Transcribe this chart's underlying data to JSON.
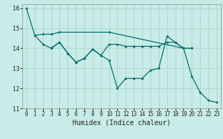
{
  "xlabel": "Humidex (Indice chaleur)",
  "background_color": "#c8ece8",
  "grid_color": "#b0d8d0",
  "line_color": "#006b6b",
  "ylim": [
    11,
    16.2
  ],
  "xlim": [
    -0.5,
    23.5
  ],
  "yticks": [
    11,
    12,
    13,
    14,
    15,
    16
  ],
  "xticks": [
    0,
    1,
    2,
    3,
    4,
    5,
    6,
    7,
    8,
    9,
    10,
    11,
    12,
    13,
    14,
    15,
    16,
    17,
    18,
    19,
    20,
    21,
    22,
    23
  ],
  "series": [
    {
      "x": [
        0,
        1,
        2,
        3,
        4,
        10,
        19,
        20
      ],
      "y": [
        16.0,
        14.65,
        14.7,
        14.7,
        14.8,
        14.8,
        14.0,
        14.0
      ]
    },
    {
      "x": [
        1,
        2,
        3,
        4,
        5,
        6,
        7,
        8,
        9,
        10,
        11,
        12,
        13,
        14,
        15,
        16,
        17,
        18,
        19,
        20
      ],
      "y": [
        14.65,
        14.2,
        14.0,
        14.3,
        13.75,
        13.3,
        13.5,
        13.95,
        13.65,
        14.2,
        14.2,
        14.1,
        14.1,
        14.1,
        14.1,
        14.1,
        14.3,
        14.3,
        14.0,
        14.0
      ]
    },
    {
      "x": [
        3,
        4,
        5,
        6,
        7,
        8,
        9,
        10,
        11,
        12,
        13,
        14,
        15,
        16,
        17,
        18,
        19,
        20,
        21,
        22,
        23
      ],
      "y": [
        14.0,
        14.3,
        13.75,
        13.3,
        13.5,
        13.95,
        13.65,
        13.4,
        12.0,
        12.5,
        12.5,
        12.5,
        12.9,
        13.0,
        14.6,
        14.3,
        14.0,
        12.6,
        11.8,
        11.4,
        11.3
      ]
    }
  ]
}
